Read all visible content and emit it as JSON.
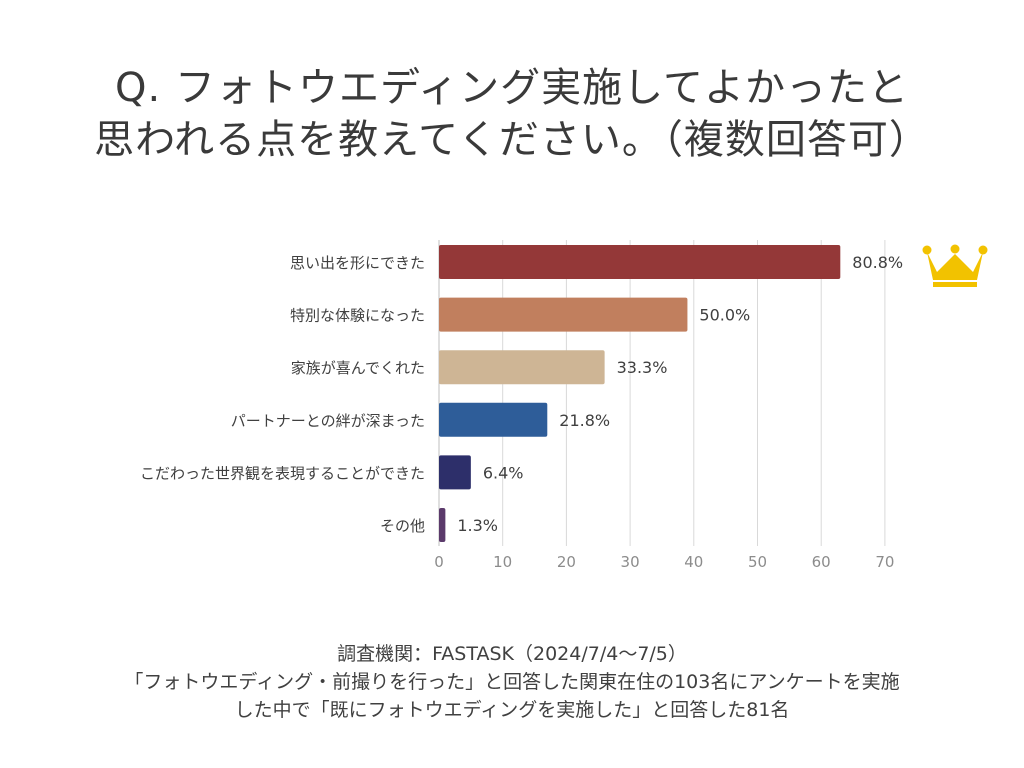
{
  "title": {
    "line1": "Q. フォトウエディング実施してよかったと",
    "line2": "思われる点を教えてください。（複数回答可）"
  },
  "chart_data": {
    "type": "bar",
    "orientation": "horizontal",
    "categories": [
      "思い出を形にできた",
      "特別な体験になった",
      "家族が喜んでくれた",
      "パートナーとの絆が深まった",
      "こだわった世界観を表現することができた",
      "その他"
    ],
    "values": [
      63,
      39,
      26,
      17,
      5,
      1
    ],
    "data_labels": [
      "80.8%",
      "50.0%",
      "33.3%",
      "21.8%",
      "6.4%",
      "1.3%"
    ],
    "colors": [
      "#943838",
      "#c17f5e",
      "#ceb595",
      "#2e5d99",
      "#2d2f6a",
      "#5b3a6b"
    ],
    "xlim": [
      0,
      70
    ],
    "xticks": [
      0,
      10,
      20,
      30,
      40,
      50,
      60,
      70
    ],
    "grid": true,
    "highlight_icon": "crown-icon",
    "highlight_color": "#f2c200"
  },
  "footer": {
    "line1": "調査機関：FASTASK（2024/7/4〜7/5）",
    "line2": "「フォトウエディング・前撮りを行った」と回答した関東在住の103名にアンケートを実施",
    "line3": "した中で「既にフォトウエディングを実施した」と回答した81名"
  }
}
